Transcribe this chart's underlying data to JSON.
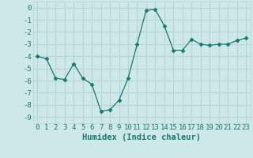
{
  "x": [
    0,
    1,
    2,
    3,
    4,
    5,
    6,
    7,
    8,
    9,
    10,
    11,
    12,
    13,
    14,
    15,
    16,
    17,
    18,
    19,
    20,
    21,
    22,
    23
  ],
  "y": [
    -4.0,
    -4.2,
    -5.8,
    -5.9,
    -4.6,
    -5.8,
    -6.3,
    -8.5,
    -8.4,
    -7.6,
    -5.8,
    -3.0,
    -0.2,
    -0.15,
    -1.5,
    -3.5,
    -3.5,
    -2.6,
    -3.0,
    -3.1,
    -3.0,
    -3.0,
    -2.7,
    -2.5
  ],
  "line_color": "#1a7a6e",
  "marker": "D",
  "marker_size": 2.5,
  "xlabel": "Humidex (Indice chaleur)",
  "xlim": [
    -0.5,
    23.5
  ],
  "ylim": [
    -9.5,
    0.5
  ],
  "yticks": [
    0,
    -1,
    -2,
    -3,
    -4,
    -5,
    -6,
    -7,
    -8,
    -9
  ],
  "xticks": [
    0,
    1,
    2,
    3,
    4,
    5,
    6,
    7,
    8,
    9,
    10,
    11,
    12,
    13,
    14,
    15,
    16,
    17,
    18,
    19,
    20,
    21,
    22,
    23
  ],
  "bg_color": "#cce8e8",
  "grid_color": "#b8d4d4",
  "tick_fontsize": 6.5,
  "xlabel_fontsize": 7.5
}
